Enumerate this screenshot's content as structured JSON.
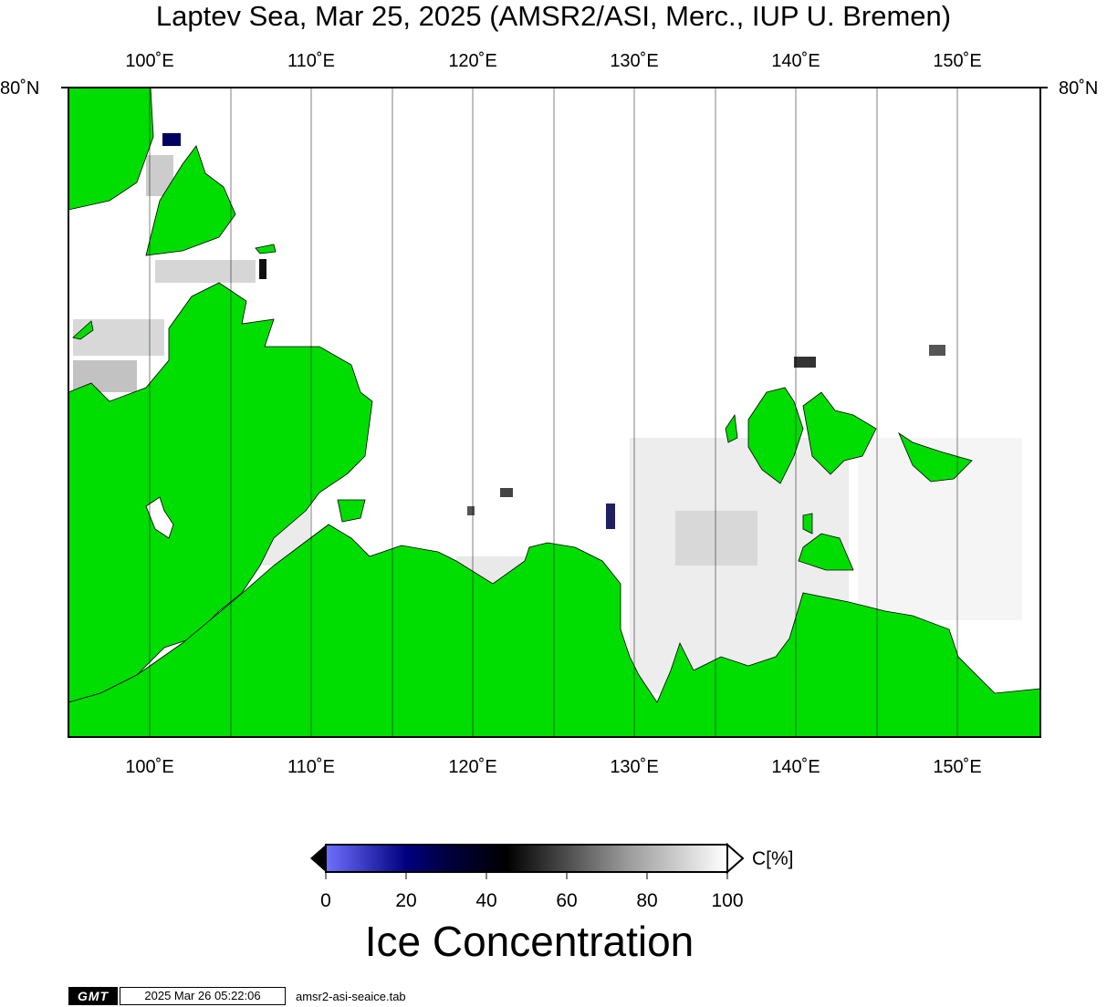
{
  "title": "Laptev Sea, Mar 25, 2025 (AMSR2/ASI, Merc., IUP U. Bremen)",
  "map": {
    "projection": "Mercator",
    "lon_range": [
      95,
      155
    ],
    "lon_ticks": [
      {
        "value": 100,
        "label": "100˚E"
      },
      {
        "value": 110,
        "label": "110˚E"
      },
      {
        "value": 120,
        "label": "120˚E"
      },
      {
        "value": 130,
        "label": "130˚E"
      },
      {
        "value": 140,
        "label": "140˚E"
      },
      {
        "value": 150,
        "label": "150˚E"
      }
    ],
    "lon_gridlines": [
      100,
      105,
      110,
      115,
      120,
      125,
      130,
      135,
      140,
      145,
      150
    ],
    "lat_label": "80˚N",
    "colors": {
      "land": "#00dd00",
      "ocean_ice": "#ffffff",
      "coastline": "#000000"
    }
  },
  "colorbar": {
    "unit": "C[%]",
    "title": "Ice Concentration",
    "ticks": [
      "0",
      "20",
      "40",
      "60",
      "80",
      "100"
    ],
    "stops": [
      {
        "value": 0,
        "color": "#7070ff"
      },
      {
        "value": 20,
        "color": "#000080"
      },
      {
        "value": 30,
        "color": "#000040"
      },
      {
        "value": 45,
        "color": "#000000"
      },
      {
        "value": 75,
        "color": "#9a9a9a"
      },
      {
        "value": 100,
        "color": "#ffffff"
      }
    ]
  },
  "footer": {
    "logo": "GMT",
    "timestamp": "2025 Mar 26 05:22:06",
    "filename": "amsr2-asi-seaice.tab"
  }
}
